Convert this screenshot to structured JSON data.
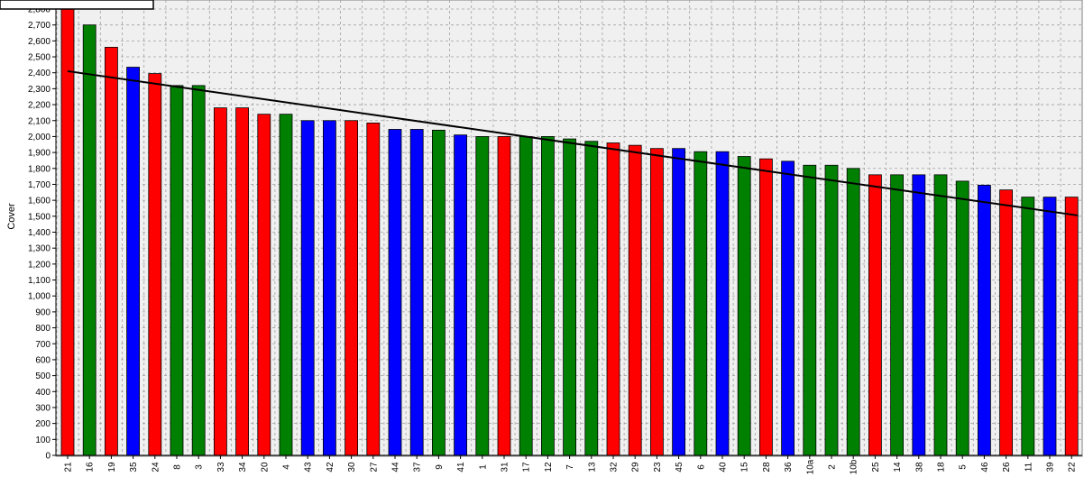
{
  "chart_data": {
    "type": "bar",
    "ylabel": "Cover",
    "xlabel": "",
    "title": "",
    "ylim": [
      0,
      2850
    ],
    "ytick_step": 100,
    "grid": true,
    "trendline": {
      "type": "linear",
      "start": 2410,
      "end": 1505
    },
    "colors": {
      "red": "#ff0000",
      "green": "#008000",
      "blue": "#0000ff",
      "trend": "#000000",
      "plot_bg": "#f0f0f0"
    },
    "categories": [
      "21",
      "16",
      "19",
      "35",
      "24",
      "8",
      "3",
      "33",
      "34",
      "20",
      "4",
      "43",
      "42",
      "30",
      "27",
      "44",
      "37",
      "9",
      "41",
      "1",
      "31",
      "17",
      "12",
      "7",
      "13",
      "32",
      "29",
      "23",
      "45",
      "6",
      "40",
      "15",
      "28",
      "36",
      "10a",
      "2",
      "10b",
      "25",
      "14",
      "38",
      "18",
      "5",
      "46",
      "26",
      "11",
      "39",
      "22"
    ],
    "values": [
      2850,
      2700,
      2560,
      2435,
      2395,
      2320,
      2320,
      2180,
      2180,
      2140,
      2140,
      2100,
      2100,
      2100,
      2085,
      2045,
      2045,
      2040,
      2010,
      2000,
      2000,
      2000,
      2000,
      1985,
      1970,
      1960,
      1945,
      1925,
      1925,
      1905,
      1905,
      1875,
      1860,
      1845,
      1820,
      1820,
      1800,
      1760,
      1760,
      1760,
      1760,
      1720,
      1695,
      1665,
      1620,
      1620,
      1620
    ],
    "bar_colors": [
      "red",
      "green",
      "red",
      "blue",
      "red",
      "green",
      "green",
      "red",
      "red",
      "red",
      "green",
      "blue",
      "blue",
      "red",
      "red",
      "blue",
      "blue",
      "green",
      "blue",
      "green",
      "red",
      "green",
      "green",
      "green",
      "green",
      "red",
      "red",
      "red",
      "blue",
      "green",
      "blue",
      "green",
      "red",
      "blue",
      "green",
      "green",
      "green",
      "red",
      "green",
      "blue",
      "green",
      "green",
      "blue",
      "red",
      "green",
      "blue",
      "red"
    ]
  }
}
